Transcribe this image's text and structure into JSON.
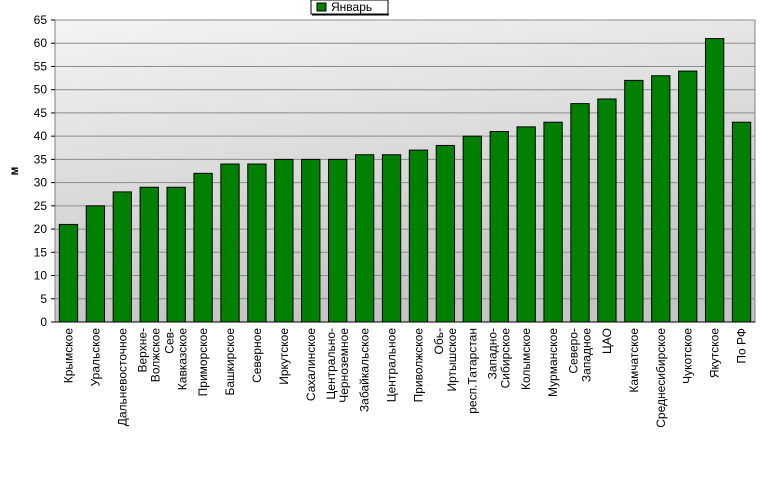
{
  "chart_data": {
    "type": "bar",
    "y_label": "м",
    "categories": [
      "Крымское",
      "Уральское",
      "Дальневосточное",
      "Верхне-Волжское",
      "Сев-Кавказское",
      "Приморское",
      "Башкирское",
      "Северное",
      "Иркутское",
      "Сахалинское",
      "Центрально-Черноземное",
      "Забайкальское",
      "Центральное",
      "Приволжское",
      "Обь-Иртышское",
      "респ.Татарстан",
      "Западно-Сибирское",
      "Колымское",
      "Мурманское",
      "Северо-Западное",
      "ЦАО",
      "Камчатское",
      "Среднесибирское",
      "Чукотское",
      "Якутское",
      "По РФ"
    ],
    "series": [
      {
        "name": "Январь",
        "color": "#008000",
        "values": [
          21,
          25,
          28,
          29,
          29,
          32,
          34,
          34,
          35,
          35,
          35,
          36,
          36,
          37,
          38,
          40,
          41,
          42,
          43,
          47,
          48,
          52,
          53,
          54,
          61,
          43
        ]
      }
    ],
    "ylim": [
      0,
      65
    ],
    "yticks": [
      0,
      5,
      10,
      15,
      20,
      25,
      30,
      35,
      40,
      45,
      50,
      55,
      60,
      65
    ],
    "grid": true
  }
}
